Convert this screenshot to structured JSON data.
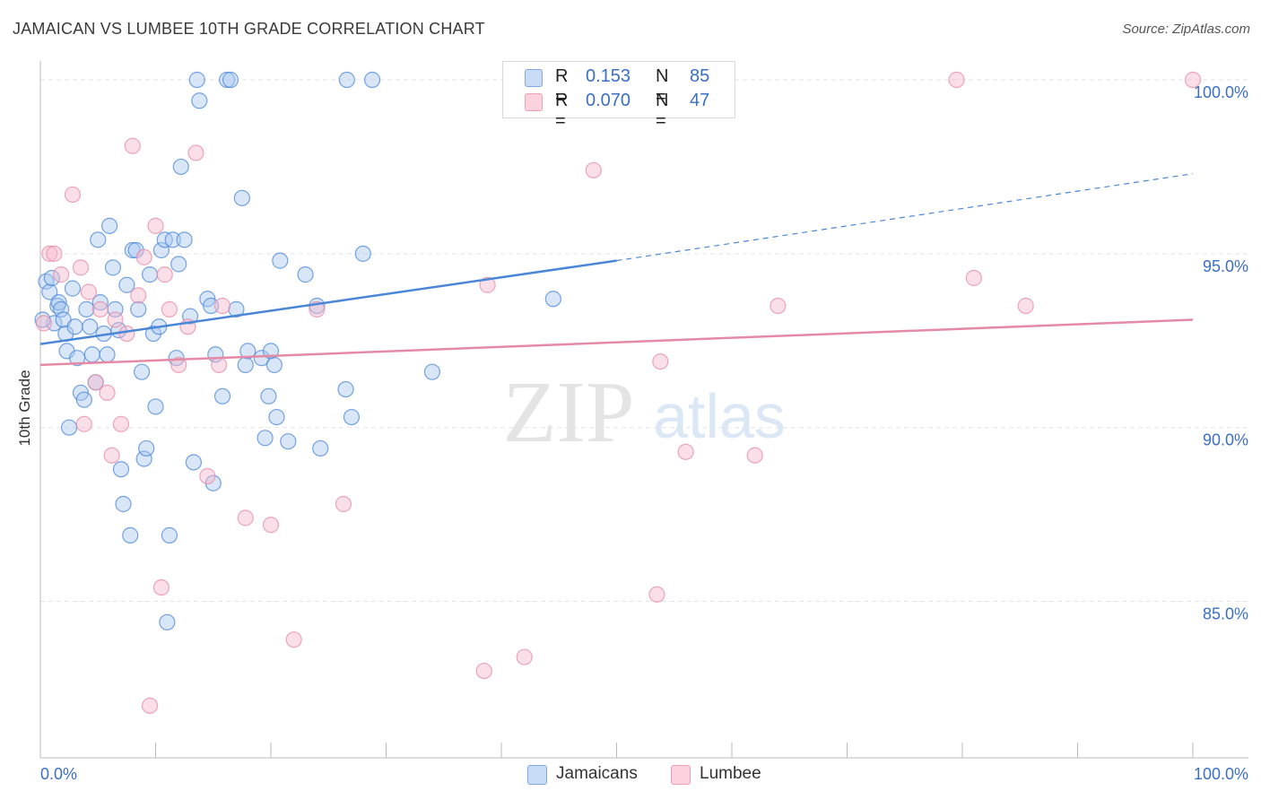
{
  "header": {
    "title": "JAMAICAN VS LUMBEE 10TH GRADE CORRELATION CHART",
    "source": "Source: ZipAtlas.com"
  },
  "legend": {
    "rows": [
      {
        "r_key": "R =",
        "r_value": "0.153",
        "n_key": "N =",
        "n_value": "85",
        "color": "#a9c7f0"
      },
      {
        "r_key": "R =",
        "r_value": "0.070",
        "n_key": "N =",
        "n_value": "47",
        "color": "#f6b9cb"
      }
    ]
  },
  "bottom_legend": [
    {
      "label": "Jamaicans",
      "color": "#a9c7f0"
    },
    {
      "label": "Lumbee",
      "color": "#f6b9cb"
    }
  ],
  "watermark": {
    "part1": "ZIP",
    "part2": "atlas"
  },
  "chart_data": {
    "type": "scatter",
    "title": "JAMAICAN VS LUMBEE 10TH GRADE CORRELATION CHART",
    "ylabel": "10th Grade",
    "xlabel": "",
    "xlim": [
      0,
      100
    ],
    "ylim": [
      80.5,
      100.8
    ],
    "x_tick_labels": [
      "0.0%",
      "100.0%"
    ],
    "y_ticks": [
      85,
      90,
      95,
      100
    ],
    "y_tick_labels": [
      "85.0%",
      "90.0%",
      "95.0%",
      "100.0%"
    ],
    "grid": true,
    "legend_position": "top-center",
    "series": [
      {
        "name": "Jamaicans",
        "color": "#4a86d8",
        "fill": "#a9c7f0",
        "r": 0.153,
        "n": 85,
        "trend": {
          "x0": 0,
          "y0": 92.4,
          "x1": 50,
          "y1": 94.8,
          "dash_to_x": 100,
          "dash_to_y": 97.3
        },
        "points": [
          [
            0.5,
            94.2
          ],
          [
            0.8,
            93.9
          ],
          [
            1.0,
            94.3
          ],
          [
            1.2,
            93.0
          ],
          [
            1.5,
            93.5
          ],
          [
            1.6,
            93.6
          ],
          [
            1.8,
            93.4
          ],
          [
            2.0,
            93.1
          ],
          [
            2.2,
            92.7
          ],
          [
            2.3,
            92.2
          ],
          [
            2.5,
            90.0
          ],
          [
            2.8,
            94.0
          ],
          [
            3.0,
            92.9
          ],
          [
            3.2,
            92.0
          ],
          [
            3.5,
            91.0
          ],
          [
            3.8,
            90.8
          ],
          [
            4.0,
            93.4
          ],
          [
            4.3,
            92.9
          ],
          [
            4.5,
            92.1
          ],
          [
            4.8,
            91.3
          ],
          [
            5.0,
            95.4
          ],
          [
            5.2,
            93.6
          ],
          [
            5.5,
            92.7
          ],
          [
            5.8,
            92.1
          ],
          [
            6.0,
            95.8
          ],
          [
            6.3,
            94.6
          ],
          [
            6.5,
            93.4
          ],
          [
            6.8,
            92.8
          ],
          [
            7.0,
            88.8
          ],
          [
            7.2,
            87.8
          ],
          [
            7.5,
            94.1
          ],
          [
            7.8,
            86.9
          ],
          [
            8.0,
            95.1
          ],
          [
            8.3,
            95.1
          ],
          [
            8.5,
            93.4
          ],
          [
            8.8,
            91.6
          ],
          [
            9.0,
            89.1
          ],
          [
            9.2,
            89.4
          ],
          [
            9.5,
            94.4
          ],
          [
            9.8,
            92.7
          ],
          [
            10.0,
            90.6
          ],
          [
            10.3,
            92.9
          ],
          [
            10.5,
            95.1
          ],
          [
            10.8,
            95.4
          ],
          [
            11.0,
            84.4
          ],
          [
            11.2,
            86.9
          ],
          [
            11.5,
            95.4
          ],
          [
            11.8,
            92.0
          ],
          [
            12.0,
            94.7
          ],
          [
            12.2,
            97.5
          ],
          [
            12.5,
            95.4
          ],
          [
            13.0,
            93.2
          ],
          [
            13.3,
            89.0
          ],
          [
            13.6,
            100.0
          ],
          [
            13.8,
            99.4
          ],
          [
            14.5,
            93.7
          ],
          [
            14.8,
            93.5
          ],
          [
            15.0,
            88.4
          ],
          [
            15.2,
            92.1
          ],
          [
            15.8,
            90.9
          ],
          [
            16.2,
            100.0
          ],
          [
            16.5,
            100.0
          ],
          [
            17.0,
            93.4
          ],
          [
            17.5,
            96.6
          ],
          [
            17.8,
            91.8
          ],
          [
            18.0,
            92.2
          ],
          [
            19.2,
            92.0
          ],
          [
            19.5,
            89.7
          ],
          [
            19.8,
            90.9
          ],
          [
            20.0,
            92.2
          ],
          [
            20.3,
            91.8
          ],
          [
            20.5,
            90.3
          ],
          [
            20.8,
            94.8
          ],
          [
            21.5,
            89.6
          ],
          [
            23.0,
            94.4
          ],
          [
            24.0,
            93.5
          ],
          [
            24.3,
            89.4
          ],
          [
            26.5,
            91.1
          ],
          [
            27.0,
            90.3
          ],
          [
            28.0,
            95.0
          ],
          [
            34.0,
            91.6
          ],
          [
            44.5,
            93.7
          ],
          [
            26.6,
            100.0
          ],
          [
            28.8,
            100.0
          ],
          [
            0.2,
            93.1
          ]
        ]
      },
      {
        "name": "Lumbee",
        "color": "#e58aa6",
        "fill": "#f6b9cb",
        "r": 0.07,
        "n": 47,
        "trend": {
          "x0": 0,
          "y0": 91.8,
          "x1": 100,
          "y1": 93.1
        },
        "points": [
          [
            0.3,
            93.0
          ],
          [
            0.8,
            95.0
          ],
          [
            1.2,
            95.0
          ],
          [
            1.8,
            94.4
          ],
          [
            2.8,
            96.7
          ],
          [
            3.5,
            94.6
          ],
          [
            3.8,
            90.1
          ],
          [
            4.2,
            93.9
          ],
          [
            4.8,
            91.3
          ],
          [
            5.2,
            93.4
          ],
          [
            5.8,
            91.0
          ],
          [
            6.5,
            93.1
          ],
          [
            6.2,
            89.2
          ],
          [
            7.0,
            90.1
          ],
          [
            7.5,
            92.7
          ],
          [
            8.0,
            98.1
          ],
          [
            8.5,
            93.8
          ],
          [
            9.0,
            94.9
          ],
          [
            9.5,
            82.0
          ],
          [
            10.0,
            95.8
          ],
          [
            10.5,
            85.4
          ],
          [
            10.8,
            94.4
          ],
          [
            11.2,
            93.4
          ],
          [
            12.0,
            91.8
          ],
          [
            12.8,
            92.9
          ],
          [
            13.5,
            97.9
          ],
          [
            14.5,
            88.6
          ],
          [
            15.5,
            91.8
          ],
          [
            15.8,
            93.5
          ],
          [
            17.8,
            87.4
          ],
          [
            20.0,
            87.2
          ],
          [
            22.0,
            83.9
          ],
          [
            24.0,
            93.4
          ],
          [
            26.3,
            87.8
          ],
          [
            38.5,
            83.0
          ],
          [
            38.8,
            94.1
          ],
          [
            42.0,
            83.4
          ],
          [
            48.0,
            97.4
          ],
          [
            53.5,
            85.2
          ],
          [
            53.8,
            91.9
          ],
          [
            56.0,
            89.3
          ],
          [
            62.0,
            89.2
          ],
          [
            64.0,
            93.5
          ],
          [
            79.5,
            100.0
          ],
          [
            81.0,
            94.3
          ],
          [
            85.5,
            93.5
          ],
          [
            100.0,
            100.0
          ]
        ]
      }
    ]
  }
}
